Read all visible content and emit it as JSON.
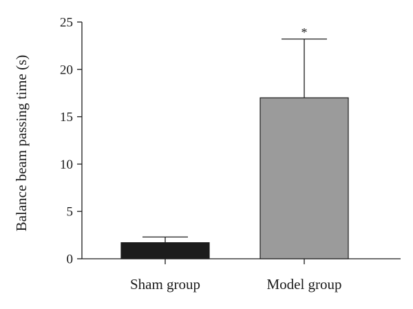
{
  "chart_data": {
    "type": "bar",
    "categories": [
      "Sham group",
      "Model group"
    ],
    "values": [
      1.7,
      17.0
    ],
    "errors": [
      0.6,
      6.2
    ],
    "annotations": [
      "",
      "*"
    ],
    "bar_colors": [
      "#1c1c1c",
      "#9b9b9b"
    ],
    "title": "",
    "xlabel": "",
    "ylabel": "Balance beam passing time (s)",
    "ylim": [
      0,
      25
    ],
    "yticks": [
      0,
      5,
      10,
      15,
      20,
      25
    ],
    "grid": false,
    "legend": "none"
  }
}
